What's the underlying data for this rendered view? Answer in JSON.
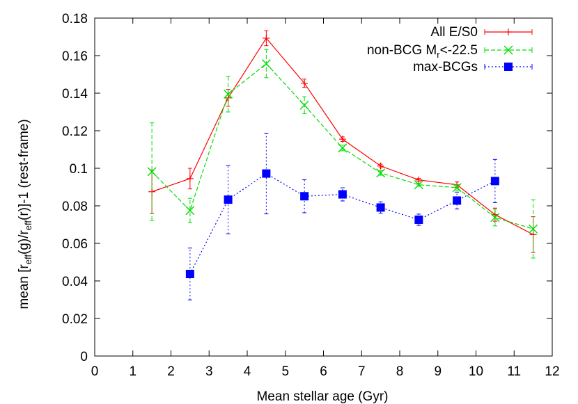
{
  "chart_data": {
    "type": "line",
    "xlabel": "Mean stellar age (Gyr)",
    "ylabel": {
      "prefix": "mean [r",
      "sub1": "eff",
      "mid": "(g)/r",
      "sub2": "eff",
      "suffix": "(r)]-1 (rest-frame)"
    },
    "xlim": [
      0,
      12
    ],
    "ylim": [
      0,
      0.18
    ],
    "xticks": [
      "0",
      "1",
      "2",
      "3",
      "4",
      "5",
      "6",
      "7",
      "8",
      "9",
      "10",
      "11",
      "12"
    ],
    "yticks": [
      "0",
      "0.02",
      "0.04",
      "0.06",
      "0.08",
      "0.1",
      "0.12",
      "0.14",
      "0.16",
      "0.18"
    ],
    "grid": false,
    "legend_position": "top-right",
    "series": [
      {
        "name": "All E/S0",
        "color": "#ff0000",
        "style": "solid",
        "marker": "plus",
        "x": [
          1.5,
          2.5,
          3.5,
          4.5,
          5.5,
          6.5,
          7.5,
          8.5,
          9.5,
          10.5,
          11.5
        ],
        "y": [
          0.0875,
          0.0945,
          0.1375,
          0.1693,
          0.1453,
          0.1155,
          0.1012,
          0.0938,
          0.0912,
          0.0753,
          0.0647
        ],
        "yerr": [
          0.0115,
          0.0055,
          0.0045,
          0.004,
          0.0022,
          0.0012,
          0.001,
          0.0008,
          0.0015,
          0.0035,
          0.0095
        ]
      },
      {
        "name_parts": {
          "pre": "non-BCG M",
          "sub": "r",
          "post": "<-22.5"
        },
        "color": "#00dd00",
        "style": "dashed",
        "marker": "cross",
        "x": [
          1.5,
          2.5,
          3.5,
          4.5,
          5.5,
          6.5,
          7.5,
          8.5,
          9.5,
          10.5,
          11.5
        ],
        "y": [
          0.0982,
          0.0775,
          0.1395,
          0.1557,
          0.1336,
          0.1108,
          0.0975,
          0.0912,
          0.0897,
          0.0738,
          0.0677
        ],
        "yerr": [
          0.026,
          0.0065,
          0.0095,
          0.0075,
          0.0045,
          0.0015,
          0.0012,
          0.0008,
          0.0015,
          0.0045,
          0.0155
        ]
      },
      {
        "name": "max-BCGs",
        "color": "#0000ff",
        "style": "dotted",
        "marker": "square",
        "x": [
          2.5,
          3.5,
          4.5,
          5.5,
          6.5,
          7.5,
          8.5,
          9.5,
          10.5
        ],
        "y": [
          0.0437,
          0.0833,
          0.0972,
          0.0851,
          0.0861,
          0.0791,
          0.0726,
          0.0828,
          0.0932
        ],
        "yerr": [
          0.0138,
          0.0182,
          0.0215,
          0.0088,
          0.0035,
          0.003,
          0.003,
          0.0045,
          0.0115
        ]
      }
    ]
  }
}
